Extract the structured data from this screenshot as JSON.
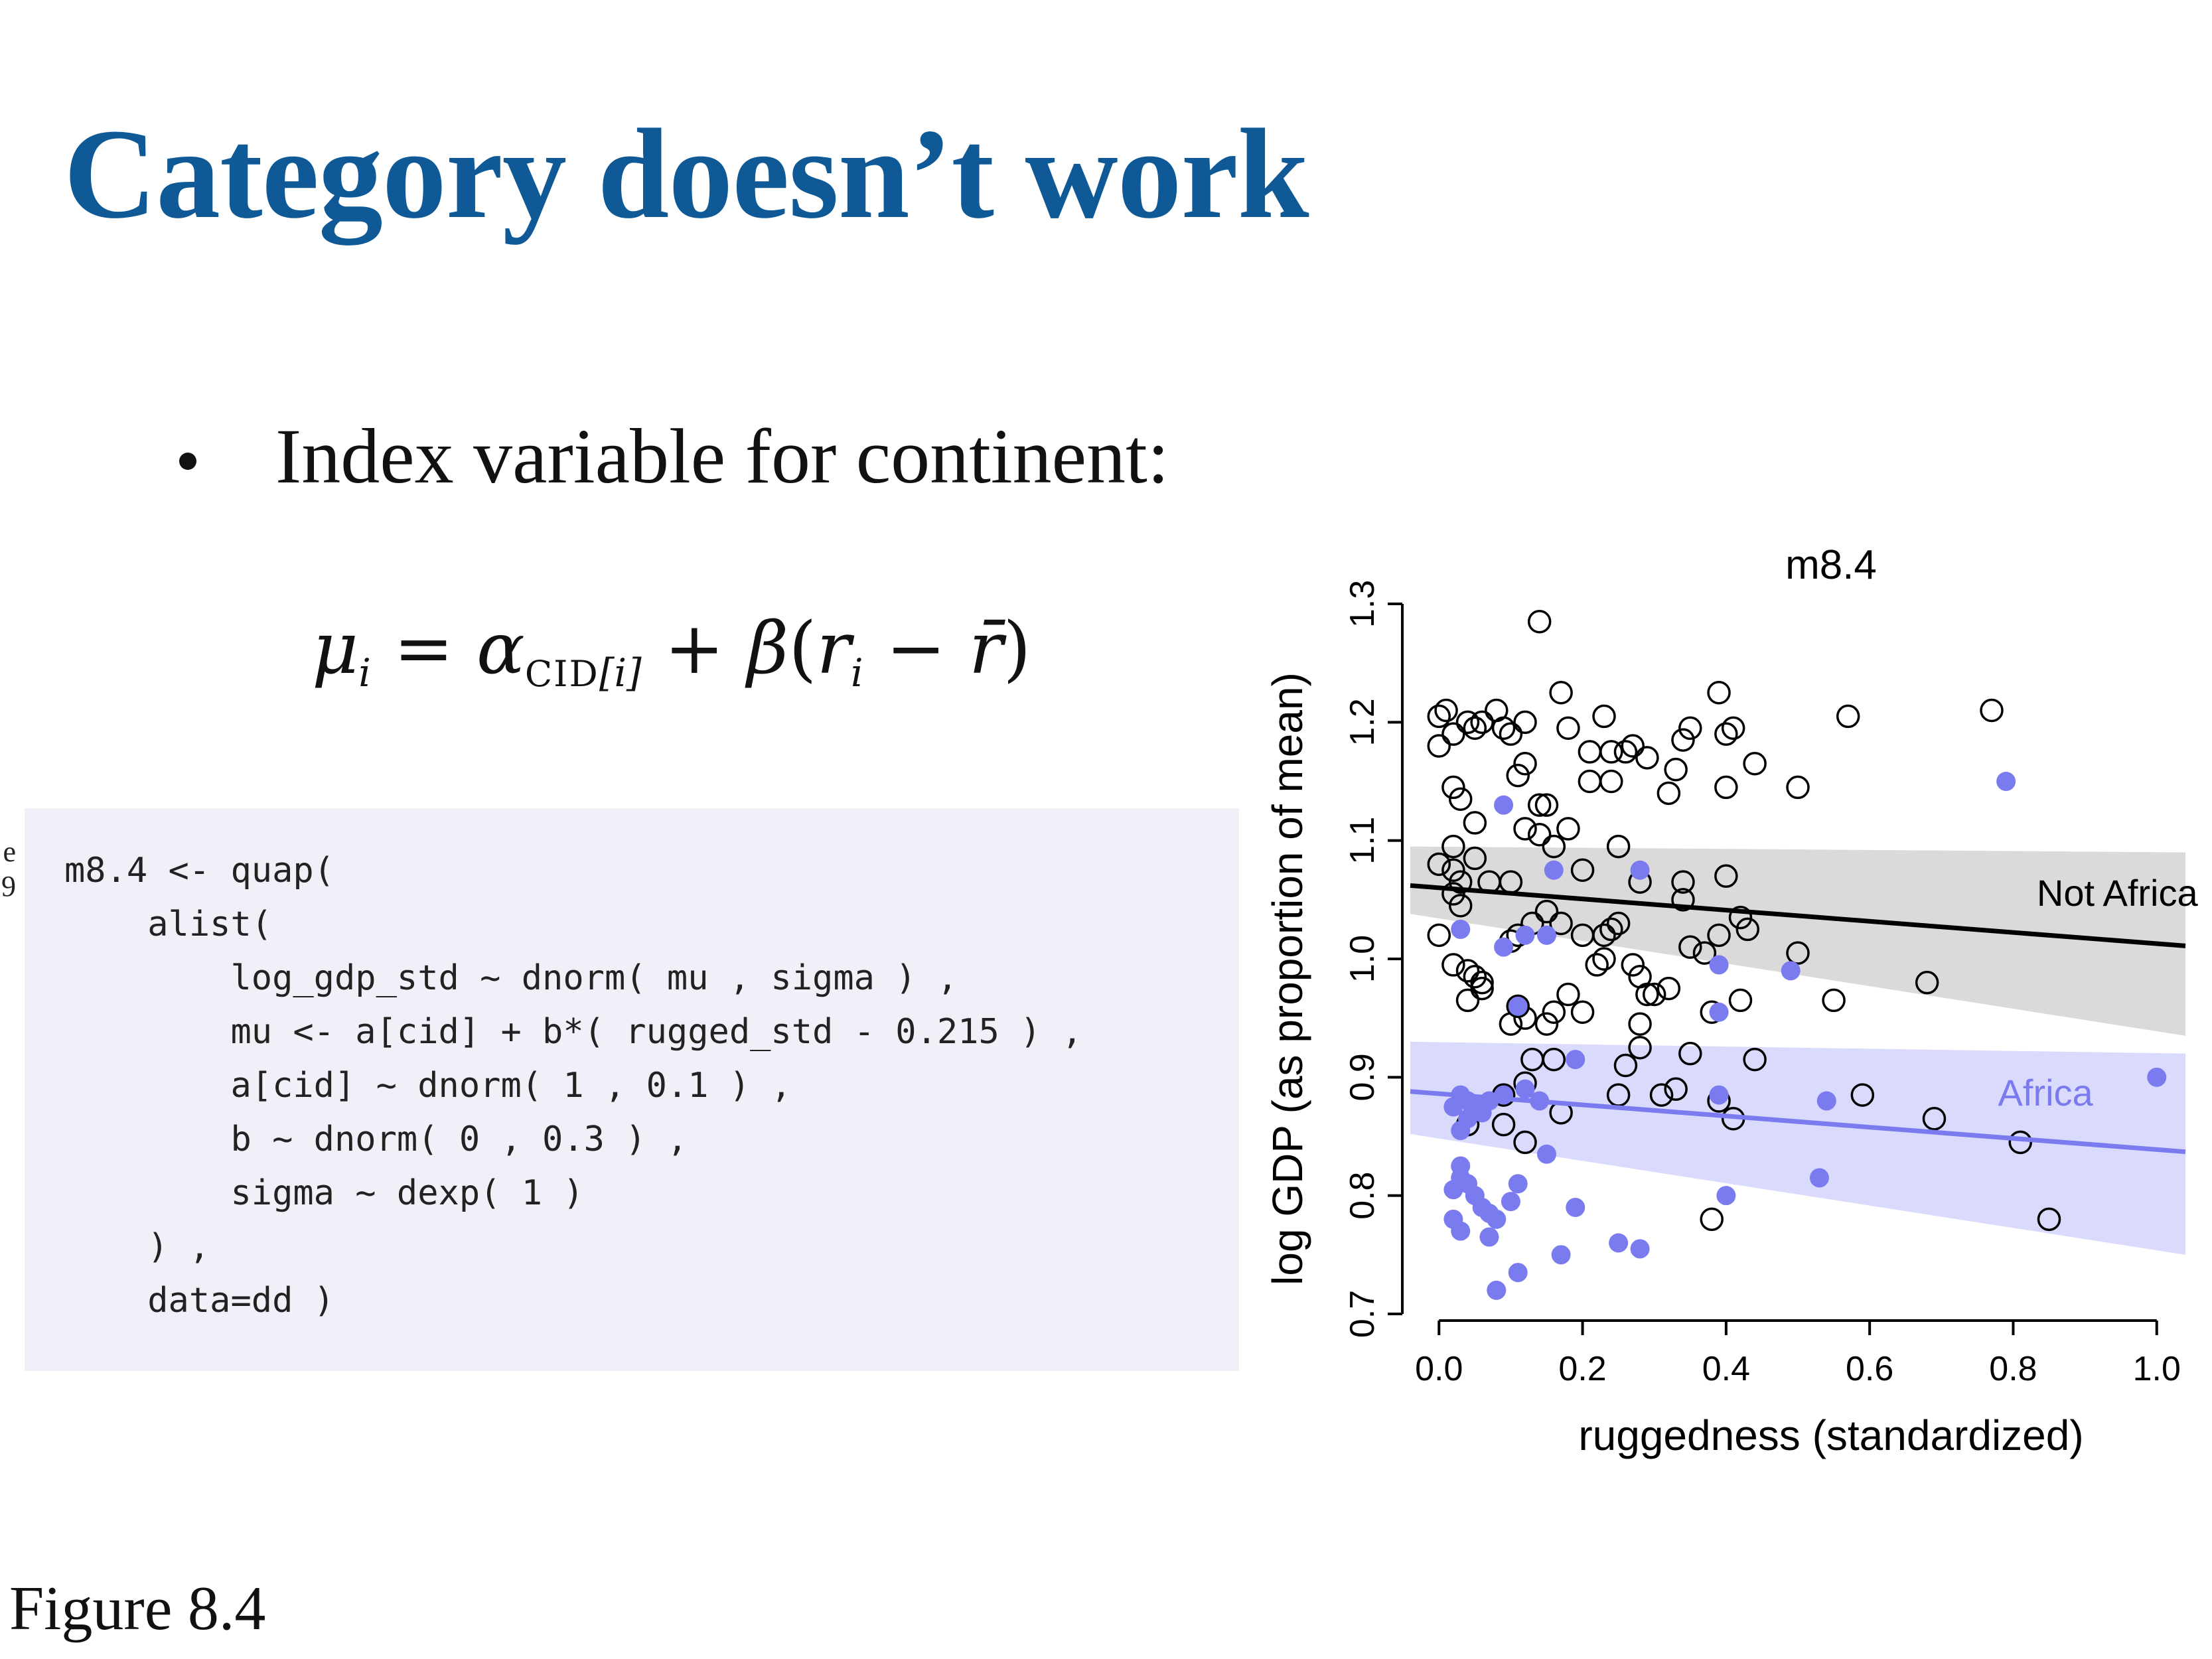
{
  "slide": {
    "title": "Category doesn’t work",
    "bullet": "Index variable for continent:",
    "equation": {
      "mu": "μ",
      "i": "i",
      "equals": " = ",
      "alpha": "α",
      "cid": "CID",
      "index": "[i]",
      "plus": " + ",
      "beta": "β",
      "open": "(",
      "r": "r",
      "minus": " − ",
      "rbar": "r̄",
      "close": ")"
    },
    "code": "m8.4 <- quap(\n    alist(\n        log_gdp_std ~ dnorm( mu , sigma ) ,\n        mu <- a[cid] + b*( rugged_std - 0.215 ) ,\n        a[cid] ~ dnorm( 1 , 0.1 ) ,\n        b ~ dnorm( 0 , 0.3 ) ,\n        sigma ~ dexp( 1 )\n    ) ,\n    data=dd )",
    "side_note": [
      "e",
      "9"
    ],
    "caption": "Figure 8.4"
  },
  "colors": {
    "title": "#0f5a96",
    "africa": "#7b7bf0",
    "africa_band": "#d4d4fb",
    "not_africa_band": "#d6d6d6",
    "not_africa_line": "#000000",
    "code_bg": "#f0f0f8"
  },
  "chart_data": {
    "type": "scatter",
    "title": "m8.4",
    "xlabel": "ruggedness (standardized)",
    "ylabel": "log GDP (as proportion of mean)",
    "xlim": [
      -0.04,
      1.04
    ],
    "ylim": [
      0.7,
      1.3
    ],
    "x_ticks": [
      0.0,
      0.2,
      0.4,
      0.6,
      0.8,
      1.0
    ],
    "x_tick_labels": [
      "0.0",
      "0.2",
      "0.4",
      "0.6",
      "0.8",
      "1.0"
    ],
    "y_ticks": [
      0.7,
      0.8,
      0.9,
      1.0,
      1.1,
      1.2,
      1.3
    ],
    "y_tick_labels": [
      "0.7",
      "0.8",
      "0.9",
      "1.0",
      "1.1",
      "1.2",
      "1.3"
    ],
    "grid": false,
    "series": [
      {
        "name": "Not Africa",
        "marker": "open-circle",
        "line": {
          "x": [
            -0.04,
            1.04
          ],
          "y": [
            1.062,
            1.011
          ]
        },
        "band": {
          "x": [
            -0.04,
            1.04
          ],
          "lower": [
            1.038,
            0.935
          ],
          "upper": [
            1.095,
            1.09
          ]
        },
        "points": [
          [
            0.0,
            1.205
          ],
          [
            0.01,
            1.21
          ],
          [
            0.02,
            1.19
          ],
          [
            0.0,
            1.18
          ],
          [
            0.02,
            1.145
          ],
          [
            0.03,
            1.135
          ],
          [
            0.04,
            1.2
          ],
          [
            0.05,
            1.195
          ],
          [
            0.06,
            1.2
          ],
          [
            0.08,
            1.21
          ],
          [
            0.09,
            1.195
          ],
          [
            0.1,
            1.19
          ],
          [
            0.12,
            1.2
          ],
          [
            0.14,
            1.285
          ],
          [
            0.11,
            1.155
          ],
          [
            0.12,
            1.165
          ],
          [
            0.05,
            1.115
          ],
          [
            0.02,
            1.095
          ],
          [
            0.0,
            1.08
          ],
          [
            0.02,
            1.075
          ],
          [
            0.03,
            1.065
          ],
          [
            0.05,
            1.085
          ],
          [
            0.07,
            1.065
          ],
          [
            0.1,
            1.065
          ],
          [
            0.12,
            1.11
          ],
          [
            0.14,
            1.13
          ],
          [
            0.15,
            1.13
          ],
          [
            0.18,
            1.11
          ],
          [
            0.14,
            1.105
          ],
          [
            0.16,
            1.095
          ],
          [
            0.17,
            1.225
          ],
          [
            0.18,
            1.195
          ],
          [
            0.21,
            1.15
          ],
          [
            0.23,
            1.205
          ],
          [
            0.24,
            1.175
          ],
          [
            0.26,
            1.175
          ],
          [
            0.27,
            1.18
          ],
          [
            0.29,
            1.17
          ],
          [
            0.32,
            1.14
          ],
          [
            0.33,
            1.16
          ],
          [
            0.34,
            1.185
          ],
          [
            0.35,
            1.195
          ],
          [
            0.39,
            1.225
          ],
          [
            0.4,
            1.19
          ],
          [
            0.41,
            1.195
          ],
          [
            0.4,
            1.145
          ],
          [
            0.44,
            1.165
          ],
          [
            0.5,
            1.145
          ],
          [
            0.57,
            1.205
          ],
          [
            0.77,
            1.21
          ],
          [
            0.25,
            1.095
          ],
          [
            0.2,
            1.075
          ],
          [
            0.02,
            1.055
          ],
          [
            0.03,
            1.045
          ],
          [
            0.0,
            1.02
          ],
          [
            0.02,
            0.995
          ],
          [
            0.04,
            0.99
          ],
          [
            0.05,
            0.985
          ],
          [
            0.06,
            0.98
          ],
          [
            0.04,
            0.965
          ],
          [
            0.06,
            0.975
          ],
          [
            0.1,
            1.015
          ],
          [
            0.11,
            1.02
          ],
          [
            0.13,
            1.03
          ],
          [
            0.15,
            1.04
          ],
          [
            0.17,
            1.03
          ],
          [
            0.18,
            0.97
          ],
          [
            0.2,
            1.02
          ],
          [
            0.22,
            0.995
          ],
          [
            0.23,
            1.02
          ],
          [
            0.24,
            1.025
          ],
          [
            0.25,
            1.03
          ],
          [
            0.23,
            1.0
          ],
          [
            0.27,
            0.995
          ],
          [
            0.28,
            0.985
          ],
          [
            0.29,
            0.97
          ],
          [
            0.3,
            0.97
          ],
          [
            0.32,
            0.975
          ],
          [
            0.28,
            1.065
          ],
          [
            0.34,
            1.065
          ],
          [
            0.34,
            1.05
          ],
          [
            0.35,
            1.01
          ],
          [
            0.37,
            1.005
          ],
          [
            0.39,
            1.02
          ],
          [
            0.4,
            1.07
          ],
          [
            0.42,
            1.035
          ],
          [
            0.43,
            1.025
          ],
          [
            0.42,
            0.965
          ],
          [
            0.38,
            0.955
          ],
          [
            0.35,
            0.92
          ],
          [
            0.28,
            0.945
          ],
          [
            0.28,
            0.925
          ],
          [
            0.26,
            0.91
          ],
          [
            0.2,
            0.955
          ],
          [
            0.16,
            0.955
          ],
          [
            0.15,
            0.945
          ],
          [
            0.12,
            0.95
          ],
          [
            0.11,
            0.96
          ],
          [
            0.1,
            0.945
          ],
          [
            0.16,
            0.915
          ],
          [
            0.13,
            0.915
          ],
          [
            0.12,
            0.895
          ],
          [
            0.33,
            0.89
          ],
          [
            0.31,
            0.885
          ],
          [
            0.25,
            0.885
          ],
          [
            0.17,
            0.87
          ],
          [
            0.12,
            0.845
          ],
          [
            0.09,
            0.86
          ],
          [
            0.04,
            0.86
          ],
          [
            0.09,
            0.885
          ],
          [
            0.38,
            0.78
          ],
          [
            0.39,
            0.88
          ],
          [
            0.41,
            0.865
          ],
          [
            0.44,
            0.915
          ],
          [
            0.5,
            1.005
          ],
          [
            0.55,
            0.965
          ],
          [
            0.59,
            0.885
          ],
          [
            0.69,
            0.865
          ],
          [
            0.68,
            0.98
          ],
          [
            0.81,
            0.845
          ],
          [
            0.85,
            0.78
          ],
          [
            0.21,
            1.175
          ],
          [
            0.24,
            1.15
          ]
        ]
      },
      {
        "name": "Africa",
        "marker": "filled-circle",
        "line": {
          "x": [
            -0.04,
            1.04
          ],
          "y": [
            0.888,
            0.837
          ]
        },
        "band": {
          "x": [
            -0.04,
            1.04
          ],
          "lower": [
            0.852,
            0.75
          ],
          "upper": [
            0.93,
            0.92
          ]
        },
        "points": [
          [
            0.09,
            1.13
          ],
          [
            0.16,
            1.075
          ],
          [
            0.28,
            1.075
          ],
          [
            0.12,
            1.02
          ],
          [
            0.15,
            1.02
          ],
          [
            0.09,
            1.01
          ],
          [
            0.03,
            1.025
          ],
          [
            0.39,
            0.995
          ],
          [
            0.39,
            0.955
          ],
          [
            0.49,
            0.99
          ],
          [
            0.11,
            0.96
          ],
          [
            0.19,
            0.915
          ],
          [
            0.02,
            0.875
          ],
          [
            0.03,
            0.885
          ],
          [
            0.04,
            0.88
          ],
          [
            0.05,
            0.875
          ],
          [
            0.06,
            0.87
          ],
          [
            0.07,
            0.88
          ],
          [
            0.09,
            0.885
          ],
          [
            0.12,
            0.89
          ],
          [
            0.14,
            0.88
          ],
          [
            0.04,
            0.865
          ],
          [
            0.03,
            0.855
          ],
          [
            0.15,
            0.835
          ],
          [
            0.03,
            0.825
          ],
          [
            0.03,
            0.815
          ],
          [
            0.04,
            0.81
          ],
          [
            0.02,
            0.805
          ],
          [
            0.05,
            0.8
          ],
          [
            0.06,
            0.79
          ],
          [
            0.07,
            0.785
          ],
          [
            0.08,
            0.78
          ],
          [
            0.1,
            0.795
          ],
          [
            0.11,
            0.81
          ],
          [
            0.02,
            0.78
          ],
          [
            0.03,
            0.77
          ],
          [
            0.07,
            0.765
          ],
          [
            0.17,
            0.75
          ],
          [
            0.25,
            0.76
          ],
          [
            0.28,
            0.755
          ],
          [
            0.19,
            0.79
          ],
          [
            0.4,
            0.8
          ],
          [
            0.39,
            0.885
          ],
          [
            0.53,
            0.815
          ],
          [
            0.54,
            0.88
          ],
          [
            0.11,
            0.735
          ],
          [
            0.08,
            0.72
          ],
          [
            0.79,
            1.15
          ],
          [
            1.0,
            0.9
          ]
        ]
      }
    ]
  }
}
